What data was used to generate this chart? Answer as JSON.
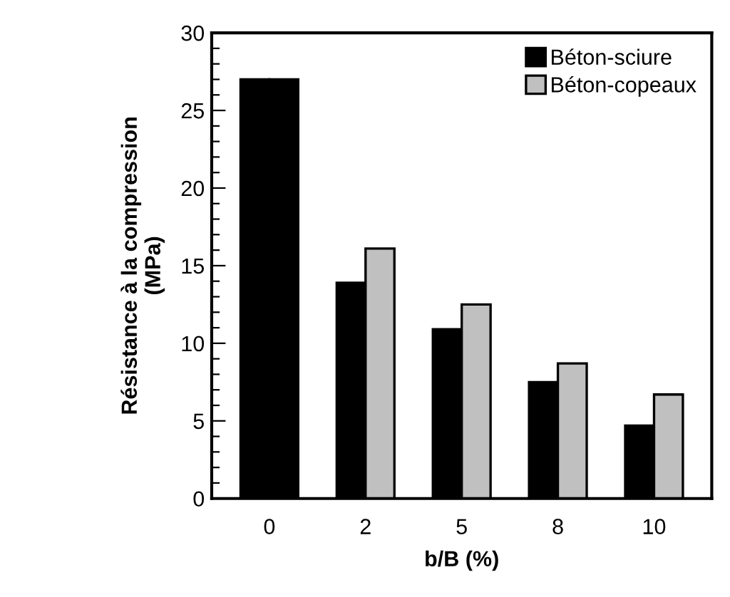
{
  "chart_data": {
    "type": "bar",
    "xlabel": "b/B (%)",
    "ylabel": "Résistance à la compression\n(MPa)",
    "categories": [
      "0",
      "2",
      "5",
      "8",
      "10"
    ],
    "series": [
      {
        "name": "Béton-sciure",
        "color": "#000000",
        "values": [
          27,
          13.9,
          10.9,
          7.5,
          4.7
        ]
      },
      {
        "name": "Béton-copeaux",
        "color": "#c0c0c0",
        "colors": [
          "#000000",
          "#c0c0c0",
          "#c0c0c0",
          "#c0c0c0",
          "#c0c0c0"
        ],
        "values": [
          27,
          16.1,
          12.5,
          8.7,
          6.7
        ]
      }
    ],
    "ylim": [
      0,
      30
    ],
    "yticks": [
      0,
      {
        "value": 1,
        "label": null
      },
      {
        "value": 2,
        "label": null
      },
      {
        "value": 3,
        "label": null
      },
      {
        "value": 4,
        "label": null
      },
      5,
      {
        "value": 6,
        "label": null
      },
      {
        "value": 7,
        "label": null
      },
      {
        "value": 8,
        "label": null
      },
      {
        "value": 9,
        "label": null
      },
      10,
      {
        "value": 11,
        "label": null
      },
      {
        "value": 12,
        "label": null
      },
      {
        "value": 13,
        "label": null
      },
      {
        "value": 14,
        "label": null
      },
      15,
      {
        "value": 16,
        "label": null
      },
      {
        "value": 17,
        "label": null
      },
      {
        "value": 18,
        "label": null
      },
      {
        "value": 19,
        "label": null
      },
      20,
      {
        "value": 21,
        "label": null
      },
      {
        "value": 22,
        "label": null
      },
      {
        "value": 23,
        "label": null
      },
      {
        "value": 24,
        "label": null
      },
      25,
      {
        "value": 26,
        "label": null
      },
      {
        "value": 27,
        "label": null
      },
      {
        "value": 28,
        "label": null
      },
      {
        "value": 29,
        "label": null
      },
      30
    ],
    "grid": false,
    "legend": "top right"
  }
}
